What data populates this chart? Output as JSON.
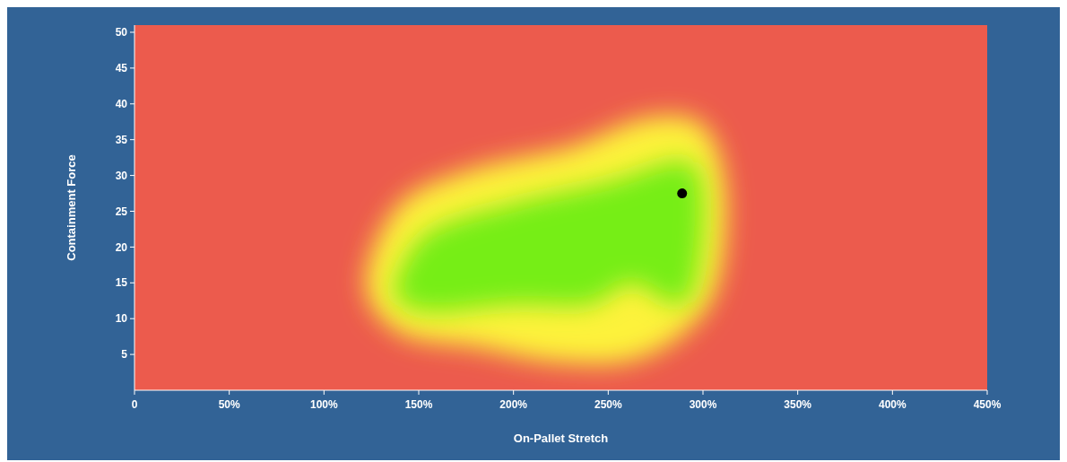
{
  "chart_data": {
    "type": "scatter",
    "xlabel": "On-Pallet Stretch",
    "ylabel": "Containment Force",
    "x": [
      289
    ],
    "values": [
      27.5
    ],
    "color": "#000000",
    "marker": "circle",
    "xlim": [
      0,
      450
    ],
    "xticks": [
      {
        "value": 0,
        "label": "0"
      },
      {
        "value": 50,
        "label": "50%"
      },
      {
        "value": 100,
        "label": "100%"
      },
      {
        "value": 150,
        "label": "150%"
      },
      {
        "value": 200,
        "label": "200%"
      },
      {
        "value": 250,
        "label": "250%"
      },
      {
        "value": 300,
        "label": "300%"
      },
      {
        "value": 350,
        "label": "350%"
      },
      {
        "value": 400,
        "label": "400%"
      },
      {
        "value": 450,
        "label": "450%"
      }
    ],
    "ylim": [
      0,
      51
    ],
    "yticks": [
      5,
      10,
      15,
      20,
      25,
      30,
      35,
      40,
      45,
      50
    ]
  }
}
